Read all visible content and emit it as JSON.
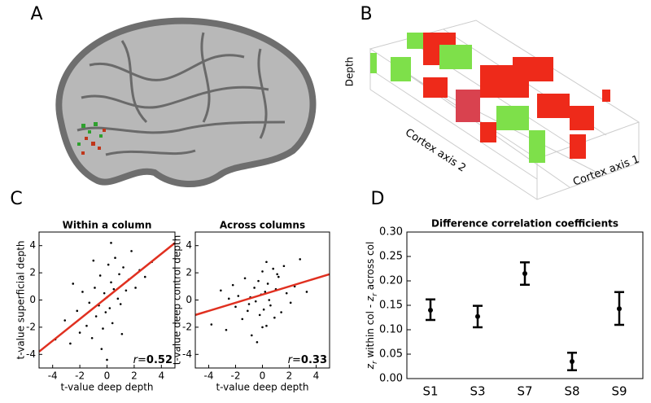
{
  "panel_labels": [
    "A",
    "B",
    "C",
    "D"
  ],
  "voxel_axes": {
    "z": "Depth",
    "y": "Cortex axis 2",
    "x": "Cortex axis 1"
  },
  "chart_data": [
    {
      "type": "scatter",
      "title": "Within a column",
      "xlabel": "t-value deep depth",
      "ylabel": "t-value superficial depth",
      "xlim": [
        -5,
        5
      ],
      "ylim": [
        -5,
        5
      ],
      "xticks": [
        -4,
        -2,
        0,
        2,
        4
      ],
      "yticks": [
        -4,
        -2,
        0,
        2,
        4
      ],
      "color": "#000000",
      "fit_color": "#e03020",
      "x": [
        -3.8,
        -3.1,
        -2.7,
        -2.2,
        -2.0,
        -1.8,
        -1.5,
        -1.3,
        -1.1,
        -0.9,
        -0.8,
        -0.6,
        -0.5,
        -0.3,
        -0.2,
        -0.1,
        0.0,
        0.1,
        0.2,
        0.3,
        0.4,
        0.5,
        0.6,
        0.8,
        0.9,
        1.0,
        1.2,
        1.4,
        1.6,
        1.8,
        2.1,
        2.4,
        2.8,
        3.3,
        -0.4,
        0.3,
        -1.0,
        1.1,
        0.0,
        -2.5
      ],
      "y": [
        -2.9,
        -1.5,
        -3.2,
        -0.8,
        -2.4,
        0.6,
        -1.9,
        -0.2,
        -2.8,
        0.9,
        -1.2,
        -0.4,
        1.8,
        -2.1,
        0.5,
        -0.9,
        0.2,
        2.6,
        -0.6,
        1.3,
        -1.7,
        0.8,
        3.1,
        0.1,
        1.9,
        -0.3,
        2.4,
        0.7,
        1.5,
        3.6,
        0.9,
        2.2,
        1.7,
        2.8,
        -3.6,
        4.2,
        2.9,
        -2.5,
        -4.4,
        1.2
      ],
      "fit": {
        "x": [
          -5,
          5
        ],
        "y": [
          -3.8,
          4.2
        ]
      },
      "r_symbol": "r",
      "r_sep": "=",
      "r_value": 0.52
    },
    {
      "type": "scatter",
      "title": "Across columns",
      "xlabel": "t-value deep depth",
      "ylabel": "t-value deep control depth",
      "xlim": [
        -5,
        5
      ],
      "ylim": [
        -5,
        5
      ],
      "xticks": [
        -4,
        -2,
        0,
        2,
        4
      ],
      "yticks": [
        -4,
        -2,
        0,
        2,
        4
      ],
      "color": "#000000",
      "fit_color": "#e03020",
      "x": [
        -3.8,
        -3.1,
        -2.7,
        -2.2,
        -2.0,
        -1.8,
        -1.5,
        -1.3,
        -1.1,
        -0.9,
        -0.8,
        -0.6,
        -0.5,
        -0.3,
        -0.2,
        -0.1,
        0.0,
        0.1,
        0.2,
        0.3,
        0.4,
        0.5,
        0.6,
        0.8,
        0.9,
        1.0,
        1.2,
        1.4,
        1.6,
        1.8,
        2.1,
        2.4,
        2.8,
        3.3,
        -0.4,
        0.3,
        -1.0,
        1.1,
        0.0,
        -2.5
      ],
      "y": [
        -1.8,
        0.7,
        -2.2,
        1.1,
        -0.5,
        0.3,
        -1.4,
        1.6,
        -0.8,
        0.2,
        -2.6,
        0.9,
        -0.1,
        1.4,
        -1.1,
        0.4,
        2.1,
        -0.7,
        0.6,
        -1.9,
        1.2,
        0.0,
        -0.4,
        2.3,
        -1.3,
        0.8,
        1.7,
        -0.9,
        2.5,
        0.5,
        -0.2,
        1.0,
        3.0,
        0.6,
        -3.1,
        2.8,
        -0.3,
        1.9,
        -2.0,
        0.1
      ],
      "fit": {
        "x": [
          -5,
          5
        ],
        "y": [
          -1.1,
          1.9
        ]
      },
      "r_symbol": "r",
      "r_sep": "=",
      "r_value": 0.33
    },
    {
      "type": "errorbar",
      "title": "Difference correlation coefficients",
      "ylabel": [
        "z",
        "r",
        " within col - ",
        "z",
        "r",
        " across col"
      ],
      "categories": [
        "S1",
        "S3",
        "S7",
        "S8",
        "S9"
      ],
      "values": [
        0.14,
        0.127,
        0.215,
        0.035,
        0.143
      ],
      "low": [
        0.12,
        0.105,
        0.192,
        0.017,
        0.11
      ],
      "high": [
        0.162,
        0.149,
        0.238,
        0.053,
        0.177
      ],
      "color": "#000000",
      "ylim": [
        0,
        0.3
      ],
      "yticks": [
        {
          "value": 0,
          "label": "0.00"
        },
        0.05,
        {
          "value": 0.1,
          "label": "0.10"
        },
        0.15,
        {
          "value": 0.2,
          "label": "0.20"
        },
        0.25,
        {
          "value": 0.3,
          "label": "0.30"
        }
      ]
    }
  ]
}
